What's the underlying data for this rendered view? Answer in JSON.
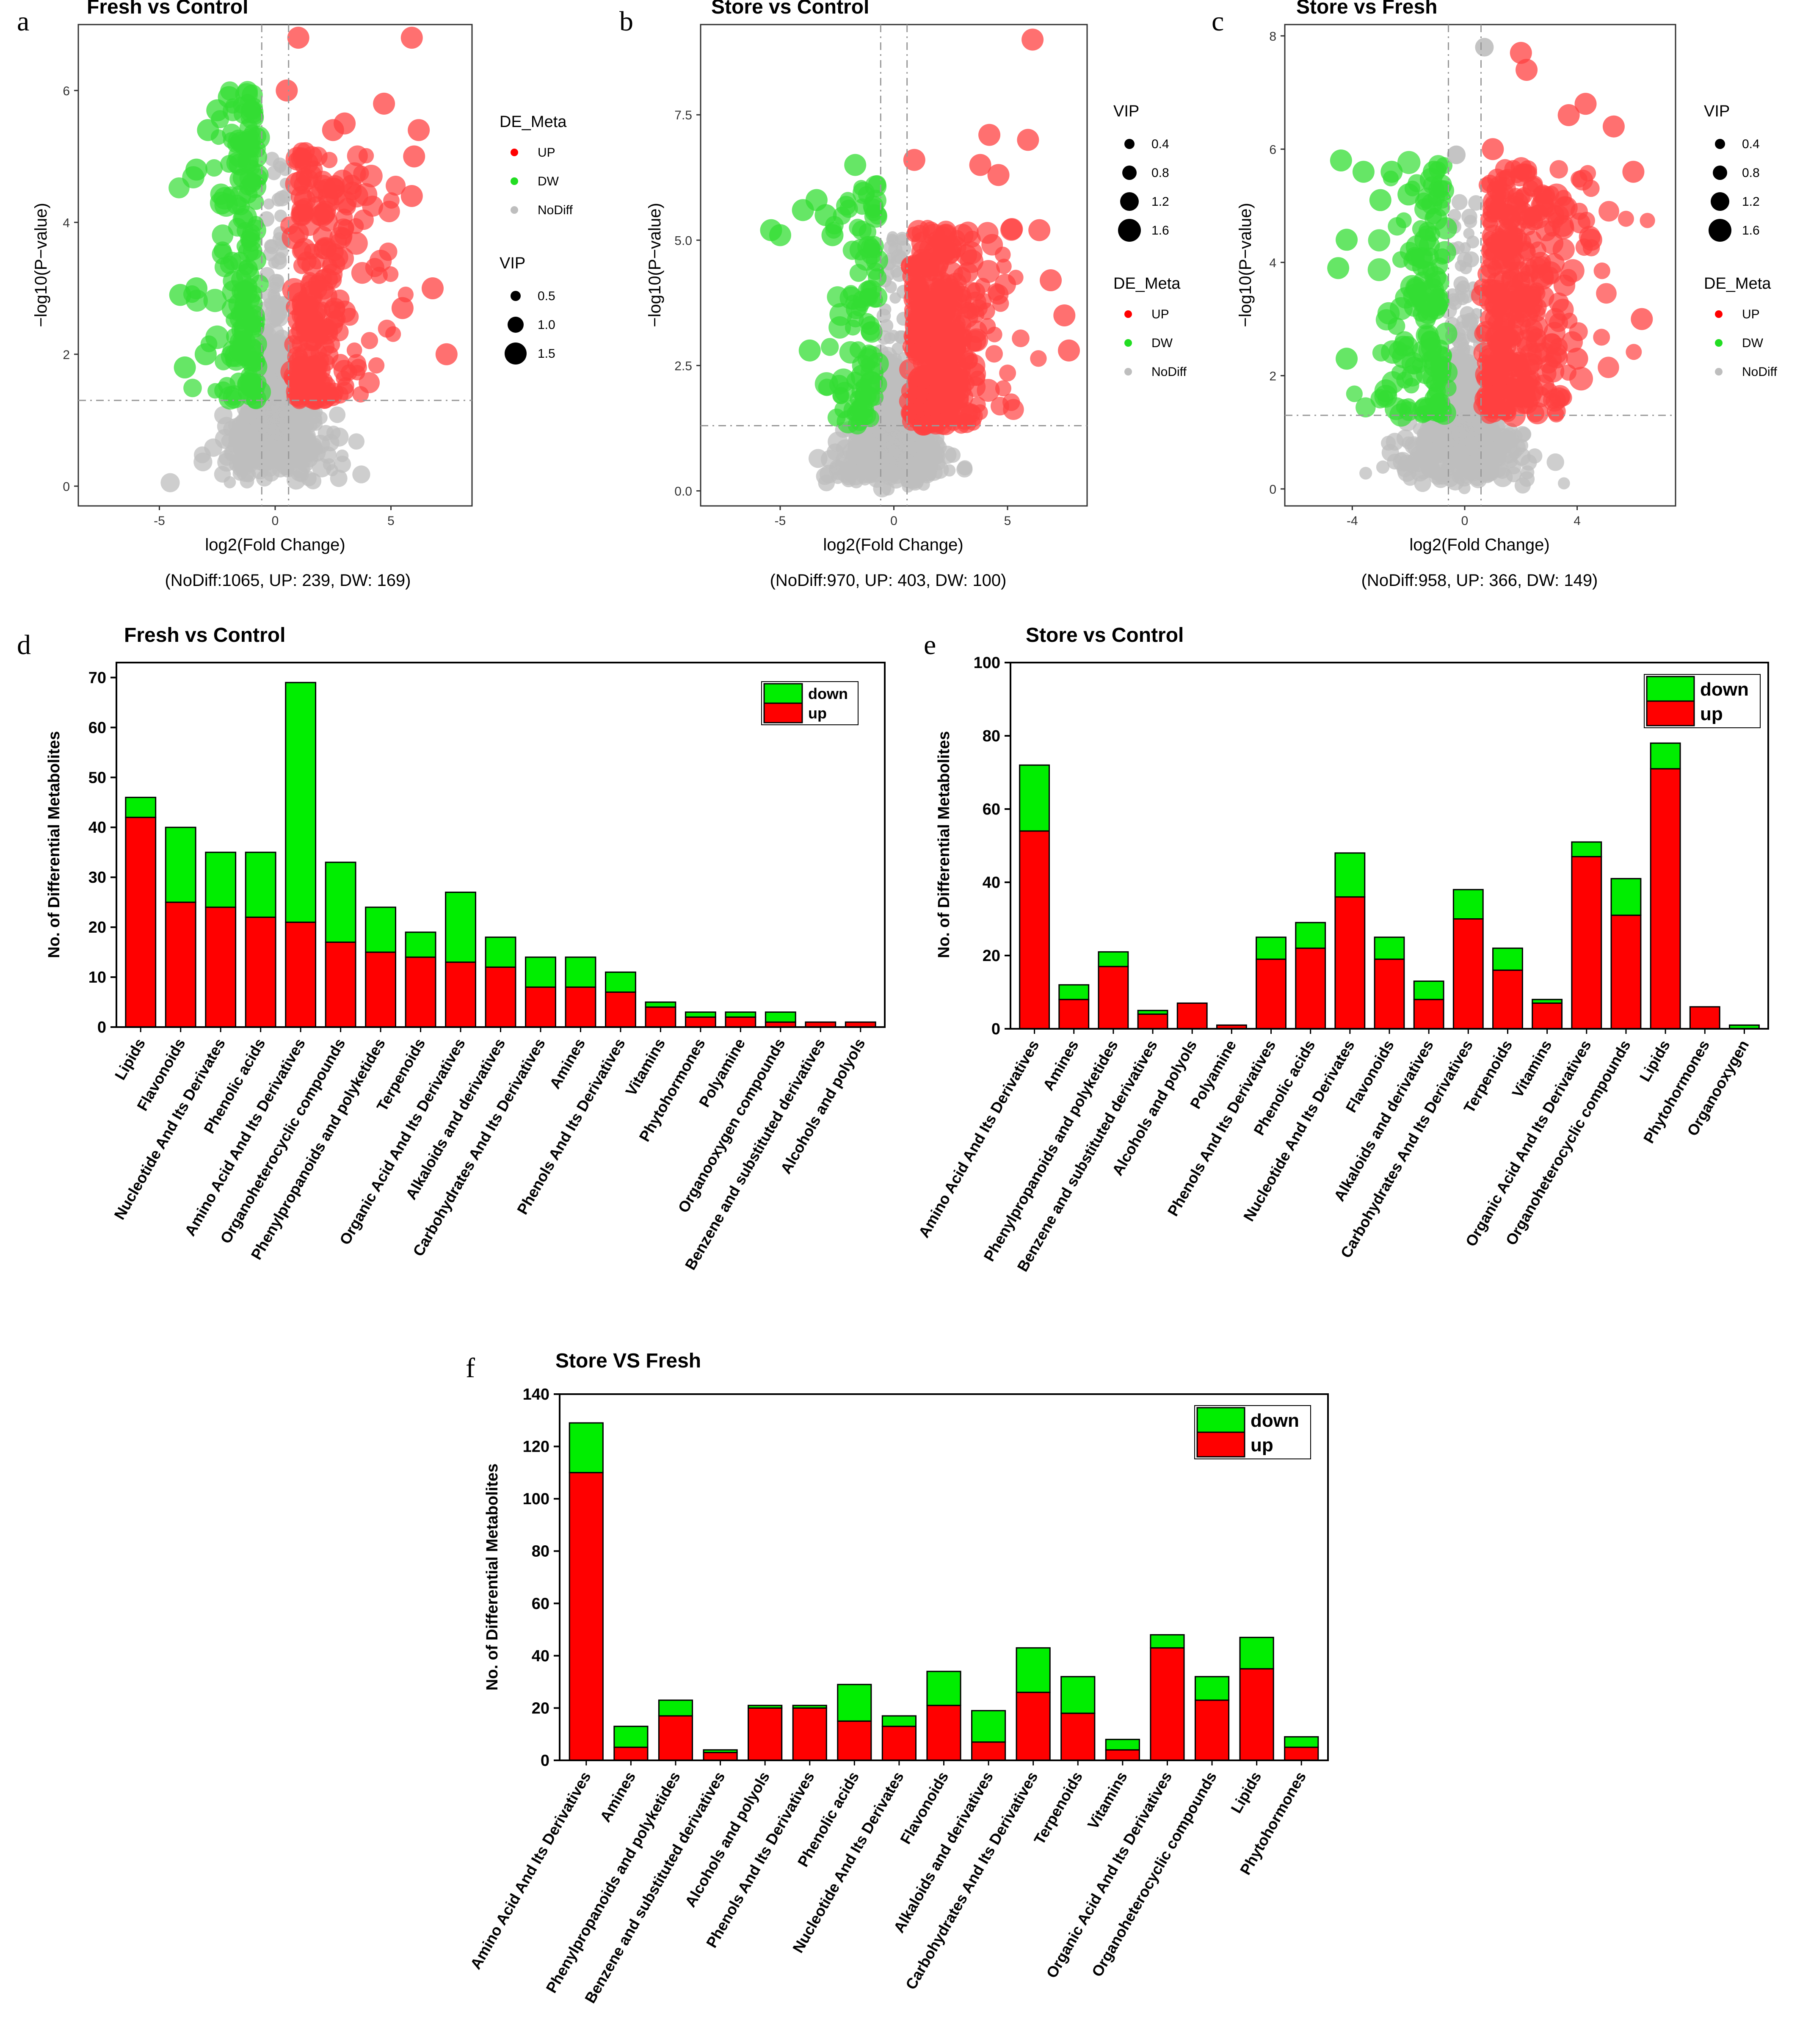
{
  "colors": {
    "up": "#ff0000",
    "down": "#00ee00",
    "nodiff": "#bebebe",
    "volcano_up": "#ff4040",
    "volcano_down": "#33dd33"
  },
  "panel_letters": [
    "a",
    "b",
    "c",
    "d",
    "e",
    "f"
  ],
  "chart_data": [
    {
      "id": "a",
      "type": "scatter",
      "title": "Fresh vs Control",
      "xlabel": "log2(Fold Change)",
      "ylabel": "−log10(P−value)",
      "xlim": [
        -8.5,
        8.5
      ],
      "ylim": [
        -0.3,
        7.0
      ],
      "xticks": [
        {
          "v": -5,
          "label": "-5"
        },
        {
          "v": 0,
          "label": "0"
        },
        {
          "v": 5,
          "label": "5"
        }
      ],
      "yticks": [
        {
          "v": 0,
          "label": "0"
        },
        {
          "v": 2,
          "label": "2"
        },
        {
          "v": 4,
          "label": "4"
        },
        {
          "v": 6,
          "label": "6"
        }
      ],
      "fc_threshold": 0.58,
      "p_threshold": 1.3,
      "counts_text": "(NoDiff:1065, UP: 239, DW: 169)",
      "counts": {
        "nodiff": 1065,
        "up": 239,
        "dw": 169
      },
      "legend_order": [
        "de",
        "vip"
      ],
      "de_legend": {
        "title": "DE_Meta",
        "items": [
          "UP",
          "DW",
          "NoDiff"
        ]
      },
      "vip_legend": {
        "title": "VIP",
        "labels": [
          "0.5",
          "1.0",
          "1.5"
        ]
      },
      "shape": {
        "seed": 11,
        "up_max_x": 7.4,
        "up_max_y": 6.8,
        "dw_min_x": -4.6,
        "dw_max_y": 6.0
      },
      "highlight_points": [
        {
          "x": 1.0,
          "y": 6.8,
          "g": "up"
        },
        {
          "x": 5.9,
          "y": 6.8,
          "g": "up"
        },
        {
          "x": 0.5,
          "y": 6.0,
          "g": "up"
        },
        {
          "x": 2.5,
          "y": 5.4,
          "g": "up"
        },
        {
          "x": 3.0,
          "y": 5.5,
          "g": "up"
        },
        {
          "x": 4.7,
          "y": 5.8,
          "g": "up"
        },
        {
          "x": 6.2,
          "y": 5.4,
          "g": "up"
        },
        {
          "x": 5.9,
          "y": 4.4,
          "g": "up"
        },
        {
          "x": 6.0,
          "y": 5.0,
          "g": "up"
        },
        {
          "x": 6.8,
          "y": 3.0,
          "g": "up"
        },
        {
          "x": 7.4,
          "y": 2.0,
          "g": "up"
        },
        {
          "x": 5.5,
          "y": 2.7,
          "g": "up"
        },
        {
          "x": -3.9,
          "y": 1.8,
          "g": "dw"
        },
        {
          "x": -3.4,
          "y": 3.0,
          "g": "dw"
        },
        {
          "x": -3.4,
          "y": 4.8,
          "g": "dw"
        },
        {
          "x": -2.9,
          "y": 5.4,
          "g": "dw"
        },
        {
          "x": -2.0,
          "y": 5.9,
          "g": "dw"
        },
        {
          "x": -2.5,
          "y": 5.7,
          "g": "dw"
        },
        {
          "x": -4.1,
          "y": 2.9,
          "g": "dw"
        },
        {
          "x": -3.0,
          "y": 2.0,
          "g": "dw"
        }
      ]
    },
    {
      "id": "b",
      "type": "scatter",
      "title": "Store vs Control",
      "xlabel": "log2(Fold Change)",
      "ylabel": "−log10(P−value)",
      "xlim": [
        -8.5,
        8.5
      ],
      "ylim": [
        -0.3,
        9.3
      ],
      "xticks": [
        {
          "v": -5,
          "label": "-5"
        },
        {
          "v": 0,
          "label": "0"
        },
        {
          "v": 5,
          "label": "5"
        }
      ],
      "yticks": [
        {
          "v": 0,
          "label": "0.0"
        },
        {
          "v": 2.5,
          "label": "2.5"
        },
        {
          "v": 5,
          "label": "5.0"
        },
        {
          "v": 7.5,
          "label": "7.5"
        }
      ],
      "fc_threshold": 0.58,
      "p_threshold": 1.3,
      "counts_text": "(NoDiff:970, UP: 403, DW: 100)",
      "counts": {
        "nodiff": 970,
        "up": 403,
        "dw": 100
      },
      "legend_order": [
        "vip",
        "de"
      ],
      "de_legend": {
        "title": "DE_Meta",
        "items": [
          "UP",
          "DW",
          "NoDiff"
        ]
      },
      "vip_legend": {
        "title": "VIP",
        "labels": [
          "0.4",
          "0.8",
          "1.2",
          "1.6"
        ]
      },
      "shape": {
        "seed": 23,
        "up_max_x": 7.8,
        "up_max_y": 7.0,
        "dw_min_x": -5.4,
        "dw_max_y": 6.2
      },
      "highlight_points": [
        {
          "x": 6.1,
          "y": 9.0,
          "g": "up"
        },
        {
          "x": 0.9,
          "y": 6.6,
          "g": "up"
        },
        {
          "x": 4.2,
          "y": 7.1,
          "g": "up"
        },
        {
          "x": 5.9,
          "y": 7.0,
          "g": "up"
        },
        {
          "x": 4.6,
          "y": 6.3,
          "g": "up"
        },
        {
          "x": 6.9,
          "y": 4.2,
          "g": "up"
        },
        {
          "x": 7.5,
          "y": 3.5,
          "g": "up"
        },
        {
          "x": 7.7,
          "y": 2.8,
          "g": "up"
        },
        {
          "x": 6.4,
          "y": 5.2,
          "g": "up"
        },
        {
          "x": 3.8,
          "y": 6.5,
          "g": "up"
        },
        {
          "x": -1.7,
          "y": 6.5,
          "g": "dw"
        },
        {
          "x": -5.4,
          "y": 5.2,
          "g": "dw"
        },
        {
          "x": -4.0,
          "y": 5.6,
          "g": "dw"
        },
        {
          "x": -3.4,
          "y": 5.8,
          "g": "dw"
        },
        {
          "x": -3.0,
          "y": 5.5,
          "g": "dw"
        },
        {
          "x": -2.7,
          "y": 5.1,
          "g": "dw"
        },
        {
          "x": -3.7,
          "y": 2.8,
          "g": "dw"
        },
        {
          "x": -5.0,
          "y": 5.1,
          "g": "dw"
        }
      ]
    },
    {
      "id": "c",
      "type": "scatter",
      "title": "Store vs Fresh",
      "xlabel": "log2(Fold Change)",
      "ylabel": "−log10(P−value)",
      "xlim": [
        -6.4,
        7.5
      ],
      "ylim": [
        -0.3,
        8.2
      ],
      "xticks": [
        {
          "v": -4,
          "label": "-4"
        },
        {
          "v": 0,
          "label": "0"
        },
        {
          "v": 4,
          "label": "4"
        }
      ],
      "yticks": [
        {
          "v": 0,
          "label": "0"
        },
        {
          "v": 2,
          "label": "2"
        },
        {
          "v": 4,
          "label": "4"
        },
        {
          "v": 6,
          "label": "6"
        },
        {
          "v": 8,
          "label": "8"
        }
      ],
      "fc_threshold": 0.58,
      "p_threshold": 1.3,
      "counts_text": "(NoDiff:958, UP: 366, DW: 149)",
      "counts": {
        "nodiff": 958,
        "up": 366,
        "dw": 149
      },
      "legend_order": [
        "vip",
        "de"
      ],
      "de_legend": {
        "title": "DE_Meta",
        "items": [
          "UP",
          "DW",
          "NoDiff"
        ]
      },
      "vip_legend": {
        "title": "VIP",
        "labels": [
          "0.4",
          "0.8",
          "1.2",
          "1.6"
        ]
      },
      "shape": {
        "seed": 37,
        "up_max_x": 6.5,
        "up_max_y": 7.6,
        "dw_min_x": -4.8,
        "dw_max_y": 5.8
      },
      "highlight_points": [
        {
          "x": 2.0,
          "y": 7.7,
          "g": "up"
        },
        {
          "x": 2.2,
          "y": 7.4,
          "g": "up"
        },
        {
          "x": 5.3,
          "y": 6.4,
          "g": "up"
        },
        {
          "x": 6.0,
          "y": 5.6,
          "g": "up"
        },
        {
          "x": 6.3,
          "y": 3.0,
          "g": "up"
        },
        {
          "x": 4.5,
          "y": 4.4,
          "g": "up"
        },
        {
          "x": 3.7,
          "y": 6.6,
          "g": "up"
        },
        {
          "x": 4.3,
          "y": 6.8,
          "g": "up"
        },
        {
          "x": 4.0,
          "y": 2.3,
          "g": "up"
        },
        {
          "x": 1.0,
          "y": 6.0,
          "g": "up"
        },
        {
          "x": -4.4,
          "y": 5.8,
          "g": "dw"
        },
        {
          "x": -3.6,
          "y": 5.6,
          "g": "dw"
        },
        {
          "x": -2.6,
          "y": 5.6,
          "g": "dw"
        },
        {
          "x": -1.1,
          "y": 5.6,
          "g": "dw"
        },
        {
          "x": -4.5,
          "y": 3.9,
          "g": "dw"
        },
        {
          "x": -4.2,
          "y": 2.3,
          "g": "dw"
        },
        {
          "x": -3.0,
          "y": 5.1,
          "g": "dw"
        },
        {
          "x": -2.0,
          "y": 5.2,
          "g": "dw"
        },
        {
          "x": -1.4,
          "y": 4.4,
          "g": "dw"
        },
        {
          "x": -4.2,
          "y": 4.4,
          "g": "dw"
        }
      ],
      "gray_outliers": [
        {
          "x": 0.7,
          "y": 7.8
        },
        {
          "x": -0.3,
          "y": 5.9
        }
      ]
    },
    {
      "id": "d",
      "type": "bar",
      "stacked": true,
      "title": "Fresh vs Control",
      "ylabel": "No. of Differential Metabolites",
      "ylim": [
        0,
        73
      ],
      "yticks": [
        0,
        10,
        20,
        30,
        40,
        50,
        60,
        70
      ],
      "legend_labels": {
        "down": "down",
        "up": "up"
      },
      "categories": [
        "Lipids",
        "Flavonoids",
        "Nucleotide And Its Derivates",
        "Phenolic acids",
        "Amino Acid And Its Derivatives",
        "Organoheterocyclic compounds",
        "Phenylpropanoids and polyketides",
        "Terpenoids",
        "Organic Acid And Its Derivatives",
        "Alkaloids and derivatives",
        "Carbohydrates And Its Derivatives",
        "Amines",
        "Phenols And Its Derivatives",
        "Vitamins",
        "Phytohormones",
        "Polyamine",
        "Organooxygen compounds",
        "Benzene and substituted derivatives",
        "Alcohols and polyols"
      ],
      "series": [
        {
          "name": "up",
          "values": [
            42,
            25,
            24,
            22,
            21,
            17,
            15,
            14,
            13,
            12,
            8,
            8,
            7,
            4,
            2,
            2,
            1,
            1,
            1
          ]
        },
        {
          "name": "down",
          "values": [
            4,
            15,
            11,
            13,
            48,
            16,
            9,
            5,
            14,
            6,
            6,
            6,
            4,
            1,
            1,
            1,
            2,
            0,
            0
          ]
        }
      ]
    },
    {
      "id": "e",
      "type": "bar",
      "stacked": true,
      "title": "Store vs Control",
      "ylabel": "No. of Differential Metabolites",
      "ylim": [
        0,
        100
      ],
      "yticks": [
        0,
        20,
        40,
        60,
        80,
        100
      ],
      "legend_labels": {
        "down": "down",
        "up": "up"
      },
      "categories": [
        "Amino Acid And Its Derivatives",
        "Amines",
        "Phenylpropanoids and polyketides",
        "Benzene and substituted derivatives",
        "Alcohols and polyols",
        "Polyamine",
        "Phenols And Its Derivatives",
        "Phenolic acids",
        "Nucleotide And Its Derivates",
        "Flavonoids",
        "Alkaloids and derivatives",
        "Carbohydrates And Its Derivatives",
        "Terpenoids",
        "Vitamins",
        "Organic Acid And Its Derivatives",
        "Organoheterocyclic compounds",
        "Lipids",
        "Phytohormones",
        "Organooxygen"
      ],
      "series": [
        {
          "name": "up",
          "values": [
            54,
            8,
            17,
            4,
            7,
            1,
            19,
            22,
            36,
            19,
            8,
            30,
            16,
            7,
            47,
            31,
            71,
            6,
            0
          ]
        },
        {
          "name": "down",
          "values": [
            18,
            4,
            4,
            1,
            0,
            0,
            6,
            7,
            12,
            6,
            5,
            8,
            6,
            1,
            4,
            10,
            7,
            0,
            1
          ]
        }
      ]
    },
    {
      "id": "f",
      "type": "bar",
      "stacked": true,
      "title": "Store VS Fresh",
      "ylabel": "No. of Differential Metabolites",
      "ylim": [
        0,
        140
      ],
      "yticks": [
        0,
        20,
        40,
        60,
        80,
        100,
        120,
        140
      ],
      "legend_labels": {
        "down": "down",
        "up": "up"
      },
      "categories": [
        "Amino Acid And Its Derivatives",
        "Amines",
        "Phenylpropanoids and polyketides",
        "Benzene and substituted derivatives",
        "Alcohols and polyols",
        "Phenols And Its Derivatives",
        "Phenolic acids",
        "Nucleotide And Its Derivates",
        "Flavonoids",
        "Alkaloids and derivatives",
        "Carbohydrates And Its Derivatives",
        "Terpenoids",
        "Vitamins",
        "Organic Acid And Its Derivatives",
        "Organoheterocyclic compounds",
        "Lipids",
        "Phytohormones"
      ],
      "series": [
        {
          "name": "up",
          "values": [
            110,
            5,
            17,
            3,
            20,
            20,
            15,
            13,
            21,
            7,
            26,
            18,
            4,
            43,
            23,
            35,
            5
          ]
        },
        {
          "name": "down",
          "values": [
            19,
            8,
            6,
            1,
            1,
            1,
            14,
            4,
            13,
            12,
            17,
            14,
            4,
            5,
            9,
            12,
            4
          ]
        }
      ]
    }
  ]
}
